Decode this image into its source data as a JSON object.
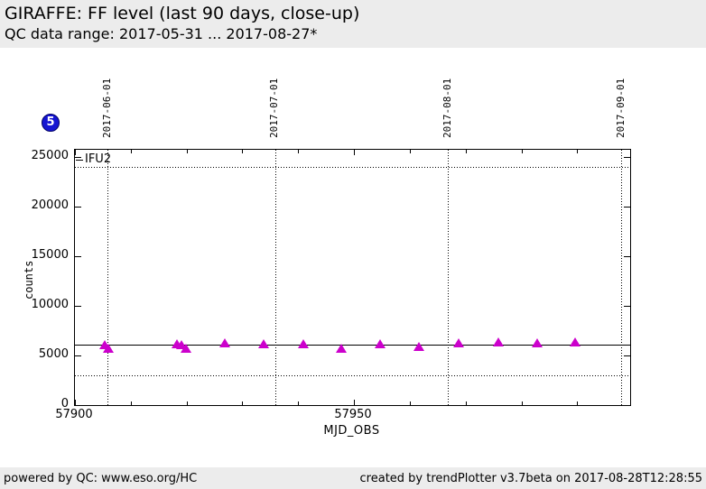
{
  "header": {
    "title": "GIRAFFE: FF level (last 90 days, close-up)",
    "subtitle": "QC data range: 2017-05-31 ... 2017-08-27*"
  },
  "badge": {
    "label": "5"
  },
  "colors": {
    "panel_bg": "#ececec",
    "plot_bg": "#ffffff",
    "marker": "#cc00cc",
    "badge_bg": "#1414d2",
    "axis": "#000000"
  },
  "chart_data": {
    "type": "scatter",
    "title": "GIRAFFE: FF level (last 90 days, close-up)",
    "xlabel": "MJD_OBS",
    "ylabel": "counts",
    "legend": [
      {
        "label": "IFU2",
        "marker": "filled-triangle-up",
        "color": "#cc00cc"
      }
    ],
    "legend_position": "top-left-inside",
    "grid": "off",
    "xlim": [
      57900,
      57999.5
    ],
    "ylim": [
      0,
      25755
    ],
    "x_ticks": [
      {
        "value": 57900,
        "label": "57900"
      },
      {
        "value": 57950,
        "label": "57950"
      }
    ],
    "x_minor_tick_interval": 10,
    "y_ticks": [
      {
        "value": 0,
        "label": "0"
      },
      {
        "value": 5000,
        "label": "5000"
      },
      {
        "value": 10000,
        "label": "10000"
      },
      {
        "value": 15000,
        "label": "15000"
      },
      {
        "value": 20000,
        "label": "20000"
      },
      {
        "value": 25000,
        "label": "25000"
      }
    ],
    "date_lines": [
      {
        "label": "2017-06-01",
        "mjd": 57905
      },
      {
        "label": "2017-07-01",
        "mjd": 57935
      },
      {
        "label": "2017-08-01",
        "mjd": 57966
      },
      {
        "label": "2017-09-01",
        "mjd": 57997
      }
    ],
    "reference_lines": [
      {
        "style": "solid",
        "value": 6100
      },
      {
        "style": "dotted",
        "value": 24000
      },
      {
        "style": "dotted",
        "value": 3000
      }
    ],
    "series": [
      {
        "name": "IFU2",
        "marker": "filled-triangle-up",
        "color": "#cc00cc",
        "points": [
          {
            "mjd": 57905.3,
            "counts": 6100
          },
          {
            "mjd": 57905.9,
            "counts": 5750
          },
          {
            "mjd": 57918.3,
            "counts": 6200
          },
          {
            "mjd": 57919.1,
            "counts": 6100
          },
          {
            "mjd": 57919.9,
            "counts": 5750
          },
          {
            "mjd": 57926.8,
            "counts": 6250
          },
          {
            "mjd": 57933.8,
            "counts": 6150
          },
          {
            "mjd": 57940.9,
            "counts": 6200
          },
          {
            "mjd": 57947.7,
            "counts": 5750
          },
          {
            "mjd": 57954.7,
            "counts": 6200
          },
          {
            "mjd": 57961.6,
            "counts": 5950
          },
          {
            "mjd": 57968.7,
            "counts": 6300
          },
          {
            "mjd": 57975.8,
            "counts": 6350
          },
          {
            "mjd": 57982.8,
            "counts": 6250
          },
          {
            "mjd": 57989.6,
            "counts": 6350
          }
        ]
      }
    ]
  },
  "footer": {
    "left": "powered by QC: www.eso.org/HC",
    "right": "created by trendPlotter v3.7beta on 2017-08-28T12:28:55"
  }
}
